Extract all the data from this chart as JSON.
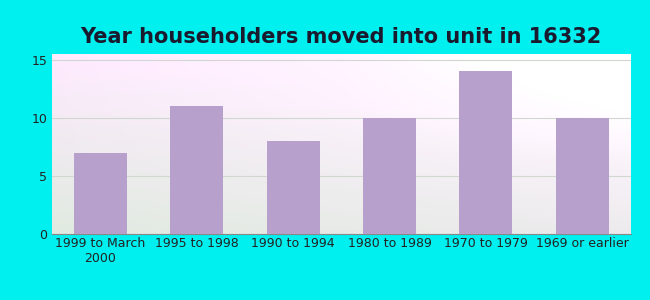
{
  "title": "Year householders moved into unit in 16332",
  "categories": [
    "1999 to March\n2000",
    "1995 to 1998",
    "1990 to 1994",
    "1980 to 1989",
    "1970 to 1979",
    "1969 or earlier"
  ],
  "values": [
    7,
    11,
    8,
    10,
    14,
    10
  ],
  "bar_color": "#b8a0cc",
  "background_outer": "#00efef",
  "yticks": [
    0,
    5,
    10,
    15
  ],
  "ylim": [
    0,
    15.5
  ],
  "title_fontsize": 15,
  "tick_fontsize": 9,
  "grid_color": "#d0d8d0",
  "title_color": "#1a1a2e"
}
